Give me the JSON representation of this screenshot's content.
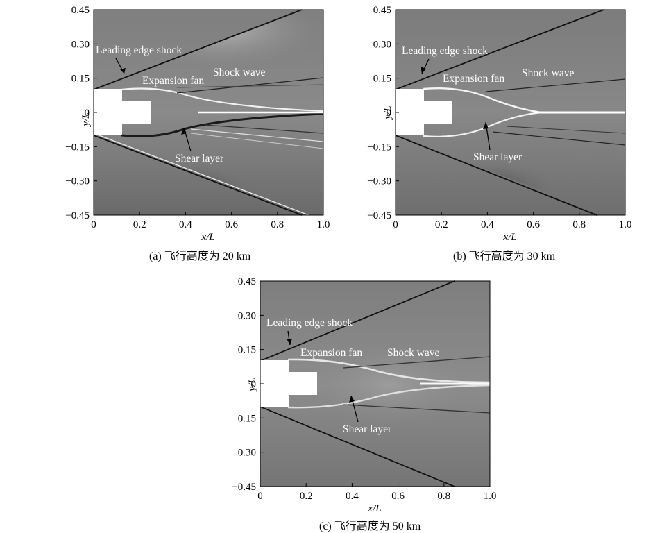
{
  "figure": {
    "panels": [
      {
        "id": "a",
        "caption": "(a) 飞行高度为 20 km",
        "ylabel": "y/L",
        "xlabel": "x/L",
        "annotations": {
          "leading_edge_shock": "Leading edge shock",
          "expansion_fan": "Expansion fan",
          "shock_wave": "Shock wave",
          "shear_layer": "Shear layer"
        }
      },
      {
        "id": "b",
        "caption": "(b) 飞行高度为 30 km",
        "ylabel": "y/L",
        "xlabel": "x/L",
        "annotations": {
          "leading_edge_shock": "Leading edge shock",
          "expansion_fan": "Expansion fan",
          "shock_wave": "Shock wave",
          "shear_layer": "Shear layer"
        }
      },
      {
        "id": "c",
        "caption": "(c) 飞行高度为 50 km",
        "ylabel": "y/L",
        "xlabel": "x/L",
        "annotations": {
          "leading_edge_shock": "Leading edge shock",
          "expansion_fan": "Expansion fan",
          "shock_wave": "Shock wave",
          "shear_layer": "Shear layer"
        }
      }
    ],
    "x_ticks": [
      "0",
      "0.2",
      "0.4",
      "0.6",
      "0.8",
      "1.0"
    ],
    "y_ticks": [
      "0.45",
      "0.30",
      "0.15",
      "0",
      "−0.15",
      "−0.30",
      "−0.45"
    ],
    "x_range": [
      0,
      1.0
    ],
    "y_range": [
      -0.45,
      0.45
    ],
    "colormap": "grayscale"
  }
}
